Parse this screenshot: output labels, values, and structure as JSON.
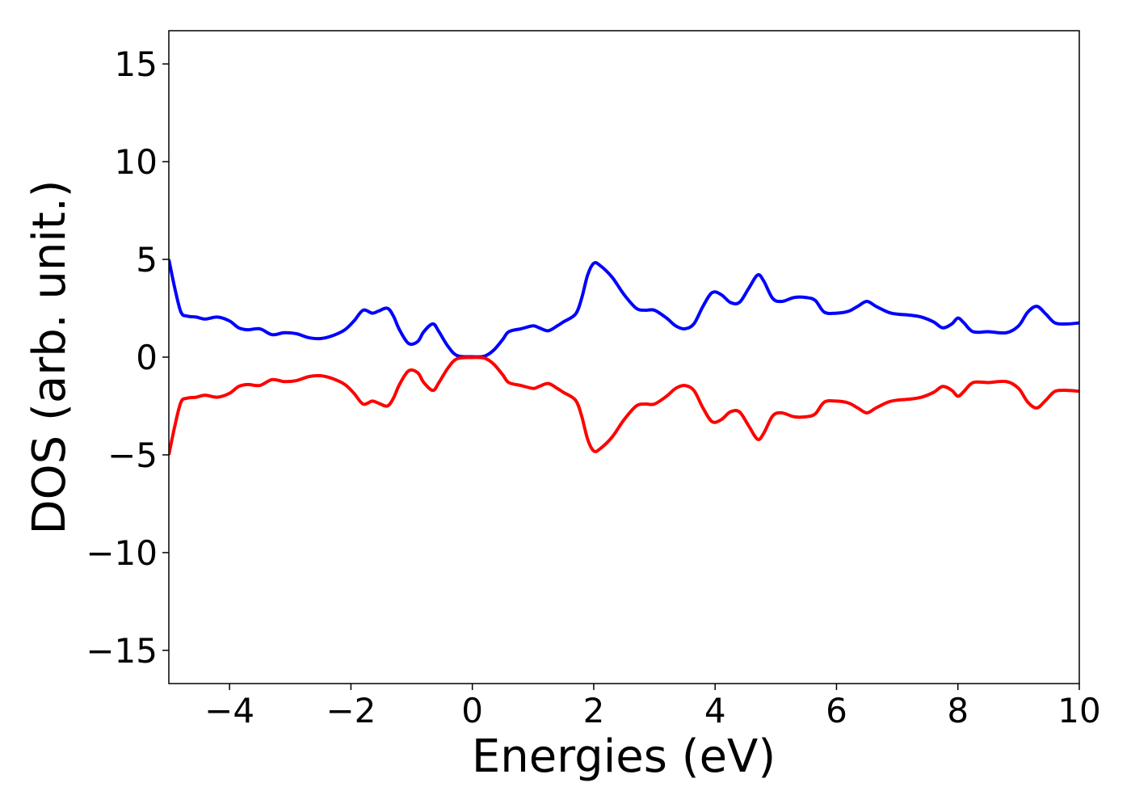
{
  "chart_data": {
    "type": "line",
    "title": "",
    "xlabel": "Energies (eV)",
    "ylabel": "DOS (arb. unit.)",
    "xlim": [
      -5,
      10
    ],
    "ylim": [
      -16.7,
      16.7
    ],
    "grid": false,
    "legend": "none",
    "x_ticks": [
      {
        "value": -4,
        "label": "−4"
      },
      {
        "value": -2,
        "label": "−2"
      },
      {
        "value": 0,
        "label": "0"
      },
      {
        "value": 2,
        "label": "2"
      },
      {
        "value": 4,
        "label": "4"
      },
      {
        "value": 6,
        "label": "6"
      },
      {
        "value": 8,
        "label": "8"
      },
      {
        "value": 10,
        "label": "10"
      }
    ],
    "y_ticks": [
      {
        "value": 15,
        "label": "15"
      },
      {
        "value": 10,
        "label": "10"
      },
      {
        "value": 5,
        "label": "5"
      },
      {
        "value": 0,
        "label": "0"
      },
      {
        "value": -5,
        "label": "−5"
      },
      {
        "value": -10,
        "label": "−10"
      },
      {
        "value": -15,
        "label": "−15"
      }
    ],
    "series": [
      {
        "color": "#0000ff",
        "points": [
          [
            -5.0,
            5.0
          ],
          [
            -4.9,
            3.5
          ],
          [
            -4.8,
            2.3
          ],
          [
            -4.7,
            2.1
          ],
          [
            -4.55,
            2.05
          ],
          [
            -4.4,
            1.95
          ],
          [
            -4.2,
            2.05
          ],
          [
            -4.0,
            1.85
          ],
          [
            -3.85,
            1.5
          ],
          [
            -3.7,
            1.4
          ],
          [
            -3.5,
            1.45
          ],
          [
            -3.3,
            1.15
          ],
          [
            -3.1,
            1.25
          ],
          [
            -2.9,
            1.2
          ],
          [
            -2.7,
            1.0
          ],
          [
            -2.5,
            0.95
          ],
          [
            -2.3,
            1.1
          ],
          [
            -2.1,
            1.4
          ],
          [
            -1.95,
            1.85
          ],
          [
            -1.8,
            2.4
          ],
          [
            -1.65,
            2.25
          ],
          [
            -1.55,
            2.35
          ],
          [
            -1.4,
            2.5
          ],
          [
            -1.3,
            2.1
          ],
          [
            -1.2,
            1.4
          ],
          [
            -1.05,
            0.7
          ],
          [
            -0.9,
            0.8
          ],
          [
            -0.8,
            1.3
          ],
          [
            -0.65,
            1.7
          ],
          [
            -0.55,
            1.3
          ],
          [
            -0.4,
            0.55
          ],
          [
            -0.25,
            0.08
          ],
          [
            0.0,
            0.02
          ],
          [
            0.2,
            0.05
          ],
          [
            0.35,
            0.35
          ],
          [
            0.5,
            0.9
          ],
          [
            0.6,
            1.3
          ],
          [
            0.8,
            1.45
          ],
          [
            1.0,
            1.6
          ],
          [
            1.1,
            1.5
          ],
          [
            1.25,
            1.35
          ],
          [
            1.4,
            1.6
          ],
          [
            1.5,
            1.8
          ],
          [
            1.7,
            2.2
          ],
          [
            1.8,
            3.0
          ],
          [
            1.9,
            4.2
          ],
          [
            2.0,
            4.8
          ],
          [
            2.1,
            4.7
          ],
          [
            2.3,
            4.1
          ],
          [
            2.5,
            3.2
          ],
          [
            2.7,
            2.5
          ],
          [
            2.85,
            2.4
          ],
          [
            3.0,
            2.4
          ],
          [
            3.2,
            2.0
          ],
          [
            3.35,
            1.6
          ],
          [
            3.5,
            1.45
          ],
          [
            3.65,
            1.7
          ],
          [
            3.8,
            2.6
          ],
          [
            3.95,
            3.3
          ],
          [
            4.1,
            3.2
          ],
          [
            4.25,
            2.8
          ],
          [
            4.4,
            2.8
          ],
          [
            4.55,
            3.5
          ],
          [
            4.7,
            4.2
          ],
          [
            4.8,
            3.9
          ],
          [
            4.95,
            3.0
          ],
          [
            5.1,
            2.85
          ],
          [
            5.3,
            3.05
          ],
          [
            5.5,
            3.05
          ],
          [
            5.65,
            2.9
          ],
          [
            5.8,
            2.3
          ],
          [
            6.0,
            2.25
          ],
          [
            6.2,
            2.35
          ],
          [
            6.35,
            2.6
          ],
          [
            6.5,
            2.85
          ],
          [
            6.65,
            2.6
          ],
          [
            6.85,
            2.3
          ],
          [
            7.0,
            2.2
          ],
          [
            7.2,
            2.15
          ],
          [
            7.4,
            2.05
          ],
          [
            7.6,
            1.8
          ],
          [
            7.75,
            1.5
          ],
          [
            7.9,
            1.7
          ],
          [
            8.0,
            2.0
          ],
          [
            8.1,
            1.75
          ],
          [
            8.25,
            1.3
          ],
          [
            8.5,
            1.3
          ],
          [
            8.8,
            1.25
          ],
          [
            9.0,
            1.6
          ],
          [
            9.15,
            2.3
          ],
          [
            9.3,
            2.6
          ],
          [
            9.45,
            2.2
          ],
          [
            9.6,
            1.75
          ],
          [
            9.8,
            1.7
          ],
          [
            10.0,
            1.75
          ]
        ]
      },
      {
        "color": "#ff0000",
        "points": [
          [
            -5.0,
            -5.0
          ],
          [
            -4.9,
            -3.5
          ],
          [
            -4.8,
            -2.3
          ],
          [
            -4.7,
            -2.1
          ],
          [
            -4.55,
            -2.05
          ],
          [
            -4.4,
            -1.95
          ],
          [
            -4.2,
            -2.05
          ],
          [
            -4.0,
            -1.85
          ],
          [
            -3.85,
            -1.5
          ],
          [
            -3.7,
            -1.4
          ],
          [
            -3.5,
            -1.45
          ],
          [
            -3.3,
            -1.15
          ],
          [
            -3.1,
            -1.25
          ],
          [
            -2.9,
            -1.2
          ],
          [
            -2.7,
            -1.0
          ],
          [
            -2.5,
            -0.95
          ],
          [
            -2.3,
            -1.1
          ],
          [
            -2.1,
            -1.4
          ],
          [
            -1.95,
            -1.85
          ],
          [
            -1.8,
            -2.4
          ],
          [
            -1.65,
            -2.25
          ],
          [
            -1.55,
            -2.35
          ],
          [
            -1.4,
            -2.5
          ],
          [
            -1.3,
            -2.1
          ],
          [
            -1.2,
            -1.4
          ],
          [
            -1.05,
            -0.7
          ],
          [
            -0.9,
            -0.8
          ],
          [
            -0.8,
            -1.3
          ],
          [
            -0.65,
            -1.7
          ],
          [
            -0.55,
            -1.3
          ],
          [
            -0.4,
            -0.55
          ],
          [
            -0.25,
            -0.08
          ],
          [
            0.0,
            -0.02
          ],
          [
            0.2,
            -0.05
          ],
          [
            0.35,
            -0.35
          ],
          [
            0.5,
            -0.9
          ],
          [
            0.6,
            -1.3
          ],
          [
            0.8,
            -1.45
          ],
          [
            1.0,
            -1.6
          ],
          [
            1.1,
            -1.5
          ],
          [
            1.25,
            -1.35
          ],
          [
            1.4,
            -1.6
          ],
          [
            1.5,
            -1.8
          ],
          [
            1.7,
            -2.2
          ],
          [
            1.8,
            -3.0
          ],
          [
            1.9,
            -4.2
          ],
          [
            2.0,
            -4.8
          ],
          [
            2.1,
            -4.7
          ],
          [
            2.3,
            -4.1
          ],
          [
            2.5,
            -3.2
          ],
          [
            2.7,
            -2.5
          ],
          [
            2.85,
            -2.4
          ],
          [
            3.0,
            -2.4
          ],
          [
            3.2,
            -2.0
          ],
          [
            3.35,
            -1.6
          ],
          [
            3.5,
            -1.45
          ],
          [
            3.65,
            -1.7
          ],
          [
            3.8,
            -2.6
          ],
          [
            3.95,
            -3.3
          ],
          [
            4.1,
            -3.2
          ],
          [
            4.25,
            -2.8
          ],
          [
            4.4,
            -2.8
          ],
          [
            4.55,
            -3.5
          ],
          [
            4.7,
            -4.2
          ],
          [
            4.8,
            -3.9
          ],
          [
            4.95,
            -3.0
          ],
          [
            5.1,
            -2.85
          ],
          [
            5.3,
            -3.05
          ],
          [
            5.5,
            -3.05
          ],
          [
            5.65,
            -2.9
          ],
          [
            5.8,
            -2.3
          ],
          [
            6.0,
            -2.25
          ],
          [
            6.2,
            -2.35
          ],
          [
            6.35,
            -2.6
          ],
          [
            6.5,
            -2.85
          ],
          [
            6.65,
            -2.6
          ],
          [
            6.85,
            -2.3
          ],
          [
            7.0,
            -2.2
          ],
          [
            7.2,
            -2.15
          ],
          [
            7.4,
            -2.05
          ],
          [
            7.6,
            -1.8
          ],
          [
            7.75,
            -1.5
          ],
          [
            7.9,
            -1.7
          ],
          [
            8.0,
            -2.0
          ],
          [
            8.1,
            -1.75
          ],
          [
            8.25,
            -1.3
          ],
          [
            8.5,
            -1.3
          ],
          [
            8.8,
            -1.25
          ],
          [
            9.0,
            -1.6
          ],
          [
            9.15,
            -2.3
          ],
          [
            9.3,
            -2.6
          ],
          [
            9.45,
            -2.2
          ],
          [
            9.6,
            -1.75
          ],
          [
            9.8,
            -1.7
          ],
          [
            10.0,
            -1.75
          ]
        ]
      }
    ]
  }
}
